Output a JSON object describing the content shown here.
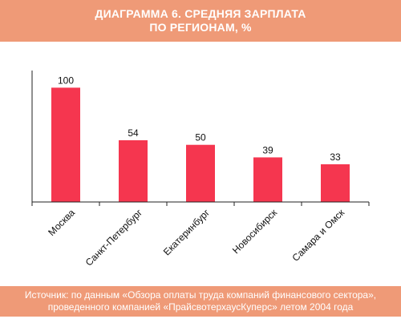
{
  "header": {
    "line1": "ДИАГРАММА 6. СРЕДНЯЯ ЗАРПЛАТА",
    "line2": "ПО РЕГИОНАМ, %"
  },
  "footer": {
    "line1": "Источник: по данным «Обзора оплаты труда компаний финансового сектора»,",
    "line2": "проведенного компанией «ПрайсвотерхаусКуперс» летом 2004 года"
  },
  "colors": {
    "bar": "#f5364f",
    "header_bg": "#ef9a77",
    "axis": "#222222"
  },
  "chart_data": {
    "type": "bar",
    "categories": [
      "Москва",
      "Санкт-Петербург",
      "Екатеринбург",
      "Новосибирск",
      "Самара и Омск"
    ],
    "values": [
      100,
      54,
      50,
      39,
      33
    ],
    "title": "",
    "xlabel": "",
    "ylabel": "",
    "ylim": [
      0,
      115
    ],
    "grid": false,
    "legend": "none"
  }
}
